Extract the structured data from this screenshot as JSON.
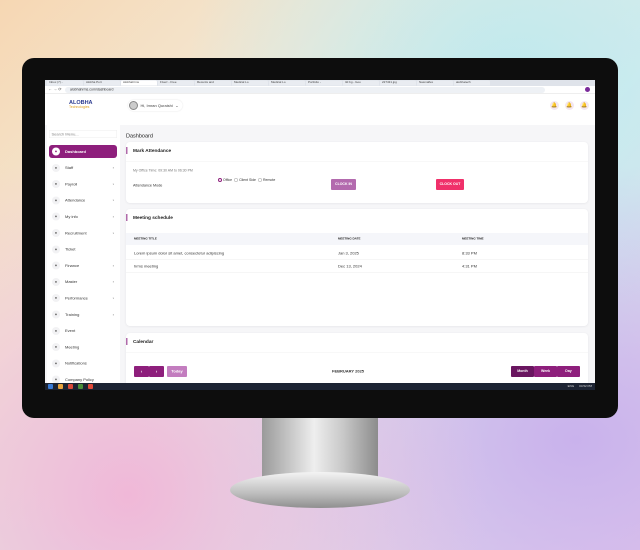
{
  "browser": {
    "tabs": [
      "Inbox (7) -",
      "Alobha Port",
      "Alobhahrms",
      "Fiverr - Free",
      "Recents and",
      "Medical Lo",
      "Medical Lo",
      "Portfolio -",
      "3d bg - Goo",
      "227431.jpg",
      "Nasmaflex",
      "alobhatech"
    ],
    "url": "alobhahrms.com/dashboard"
  },
  "header": {
    "logo_main": "ALOBHA",
    "logo_sub": "Technologies",
    "user_greeting": "Hi, Imran Quraishi"
  },
  "sidebar": {
    "search_placeholder": "Search Menu...",
    "items": [
      {
        "label": "Dashboard",
        "icon": "home-icon",
        "chev": false
      },
      {
        "label": "Staff",
        "icon": "users-icon",
        "chev": true
      },
      {
        "label": "Payroll",
        "icon": "payroll-icon",
        "chev": true
      },
      {
        "label": "Attendance",
        "icon": "clock-icon",
        "chev": true
      },
      {
        "label": "My info",
        "icon": "user-icon",
        "chev": true
      },
      {
        "label": "Recruitment",
        "icon": "recruit-icon",
        "chev": true
      },
      {
        "label": "Ticket",
        "icon": "ticket-icon",
        "chev": false
      },
      {
        "label": "Finance",
        "icon": "finance-icon",
        "chev": true
      },
      {
        "label": "Master",
        "icon": "gear-icon",
        "chev": true
      },
      {
        "label": "Performance",
        "icon": "performance-icon",
        "chev": true
      },
      {
        "label": "Training",
        "icon": "training-icon",
        "chev": true
      },
      {
        "label": "Event",
        "icon": "calendar-icon",
        "chev": false
      },
      {
        "label": "Meeting",
        "icon": "meeting-icon",
        "chev": false
      },
      {
        "label": "Notifications",
        "icon": "bell-icon",
        "chev": false
      },
      {
        "label": "Company Policy",
        "icon": "policy-icon",
        "chev": false
      }
    ]
  },
  "main": {
    "page_title": "Dashboard",
    "attendance": {
      "title": "Mark Attendance",
      "office_time": "My Office Time: 09:30 AM to 06:30 PM",
      "mode_label": "Attendance Mode",
      "modes": [
        "Office",
        "Client Side",
        "Remote"
      ],
      "selected_mode": "Office",
      "clock_in": "CLOCK IN",
      "clock_out": "CLOCK OUT"
    },
    "meetings": {
      "title": "Meeting schedule",
      "columns": [
        "MEETING TITLE",
        "MEETING DATE",
        "MEETING TIME"
      ],
      "rows": [
        [
          "Lorem ipsum dolor sit amet, consectetur adipiscing",
          "Jan 3, 2025",
          "8:33 PM"
        ],
        [
          "hrms meeting",
          "Dec 13, 2024",
          "4:31 PM"
        ]
      ]
    },
    "calendar": {
      "title": "Calendar",
      "today": "Today",
      "month": "FEBRUARY 2025",
      "views": [
        "Month",
        "Week",
        "Day"
      ],
      "active_view": "Month"
    }
  },
  "taskbar": {
    "lang": "ENG",
    "time": "04:52 PM"
  },
  "colors": {
    "accent": "#8e1f7c",
    "clock_in": "#b36aae",
    "clock_out": "#f0306a"
  }
}
